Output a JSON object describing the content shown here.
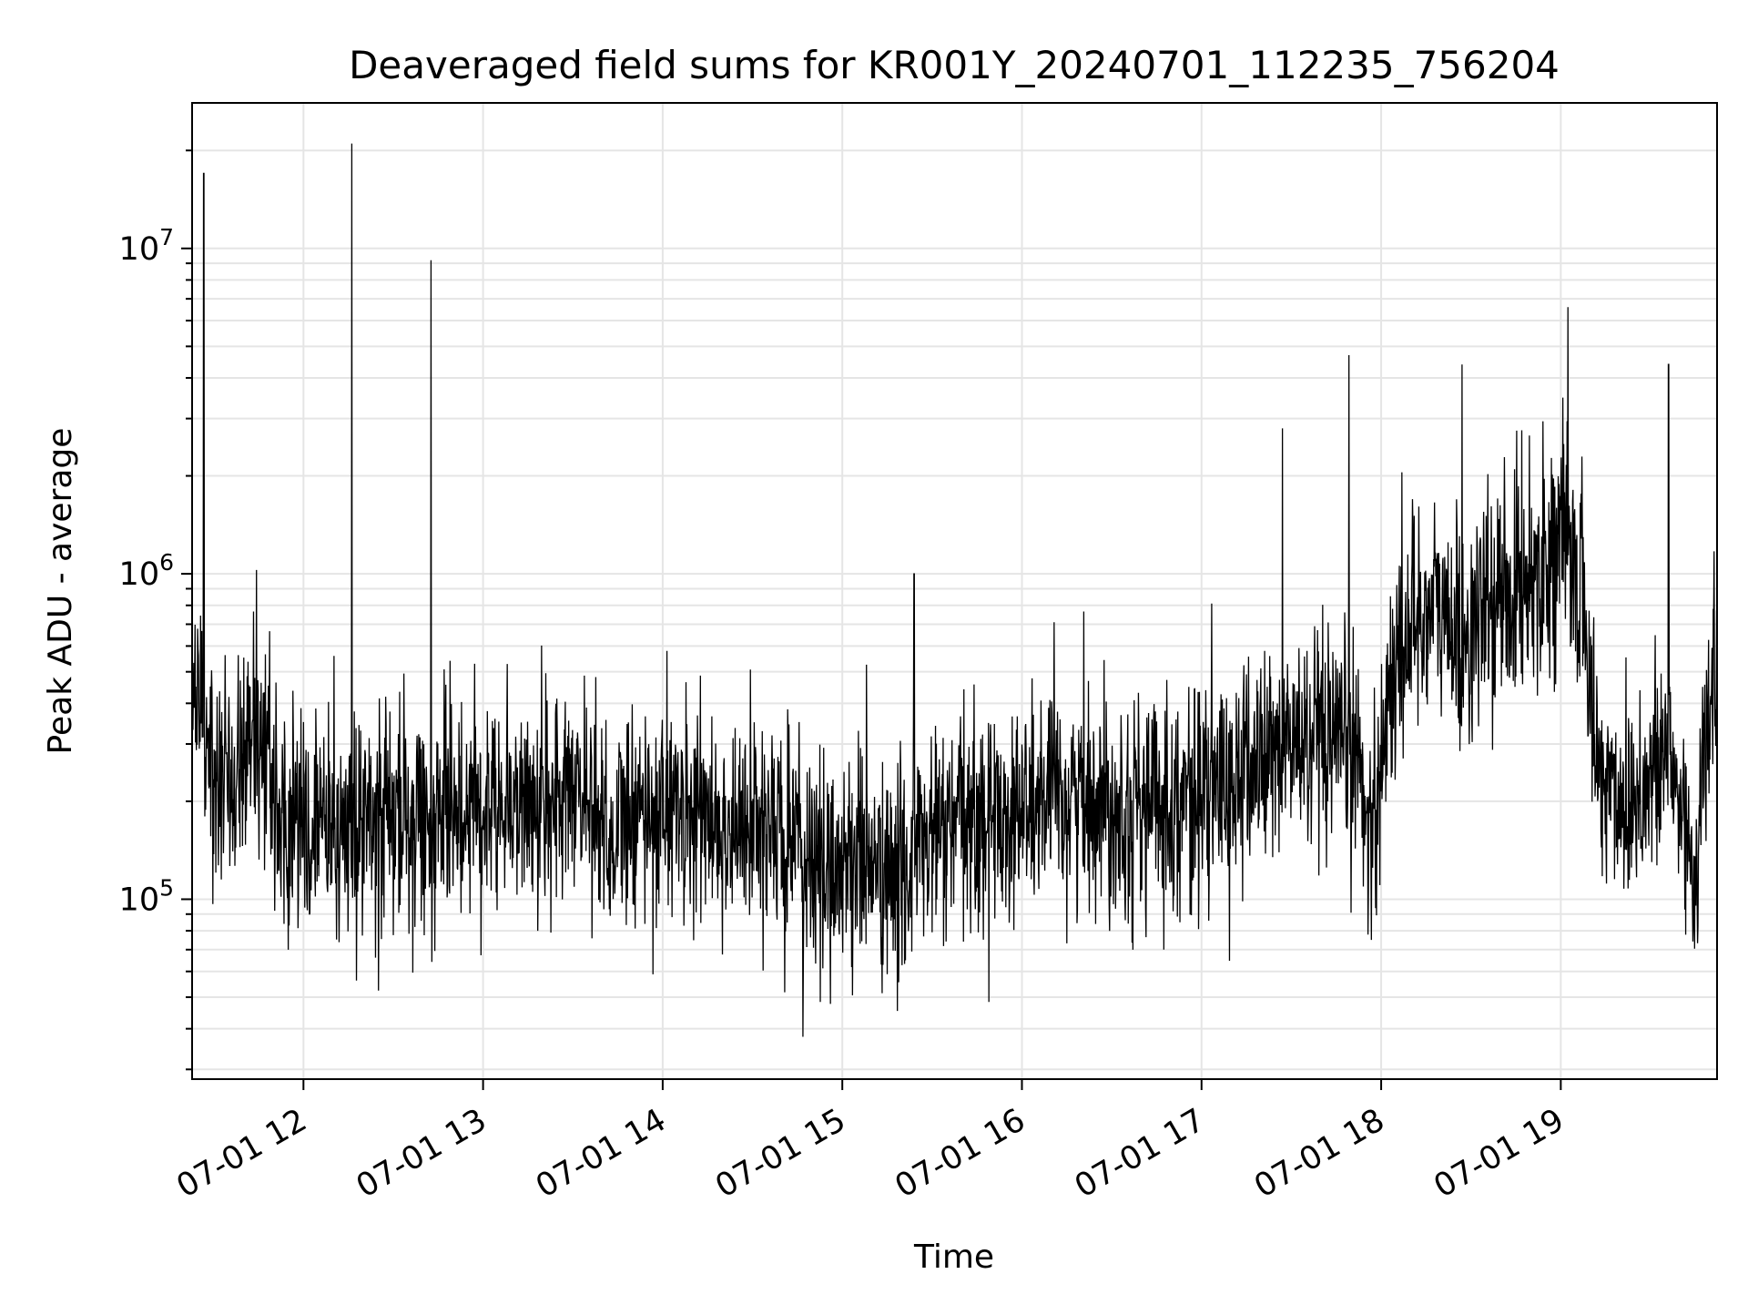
{
  "chart_data": {
    "type": "line",
    "title": "Deaveraged field sums for KR001Y_20240701_112235_756204",
    "xlabel": "Time",
    "ylabel": "Peak ADU - average",
    "x_tick_labels": [
      "07-01 12",
      "07-01 13",
      "07-01 14",
      "07-01 15",
      "07-01 16",
      "07-01 17",
      "07-01 18",
      "07-01 19"
    ],
    "x_tick_hours": [
      12,
      13,
      14,
      15,
      16,
      17,
      18,
      19
    ],
    "xlim_hours": [
      11.38,
      19.87
    ],
    "x_start": "2024-07-01 11:22:35",
    "x_end": "2024-07-01 19:52",
    "y_scale": "log",
    "ylim": [
      28000,
      28000000
    ],
    "y_major_ticks": [
      {
        "value": 100000,
        "base": "10",
        "exp": "5"
      },
      {
        "value": 1000000,
        "base": "10",
        "exp": "6"
      },
      {
        "value": 10000000,
        "base": "10",
        "exp": "7"
      }
    ],
    "grid": true,
    "line_color": "#000000",
    "grid_color": "#e5e5e5",
    "series": [
      {
        "hours": [
          11.38,
          11.45,
          11.55,
          11.65,
          11.75,
          11.85,
          11.95,
          12.1,
          12.25,
          12.4,
          12.55,
          12.7,
          12.85,
          13.0,
          13.2,
          13.4,
          13.55,
          13.7,
          13.85,
          14.0,
          14.2,
          14.4,
          14.55,
          14.7,
          14.8,
          14.9,
          15.0,
          15.1,
          15.2,
          15.3,
          15.4,
          15.55,
          15.7,
          15.85,
          16.0,
          16.2,
          16.4,
          16.6,
          16.8,
          17.0,
          17.15,
          17.3,
          17.45,
          17.55,
          17.65,
          17.75,
          17.85,
          17.95,
          18.05,
          18.15,
          18.3,
          18.45,
          18.6,
          18.75,
          18.9,
          19.0,
          19.05,
          19.12,
          19.2,
          19.35,
          19.5,
          19.6,
          19.68,
          19.75,
          19.82,
          19.87
        ],
        "values": [
          350000,
          330000,
          250000,
          280000,
          360000,
          190000,
          160000,
          170000,
          160000,
          170000,
          180000,
          170000,
          190000,
          210000,
          200000,
          190000,
          230000,
          160000,
          170000,
          200000,
          180000,
          160000,
          170000,
          150000,
          130000,
          120000,
          130000,
          140000,
          120000,
          110000,
          140000,
          160000,
          170000,
          180000,
          190000,
          200000,
          210000,
          190000,
          200000,
          210000,
          220000,
          260000,
          290000,
          310000,
          280000,
          270000,
          300000,
          160000,
          450000,
          700000,
          800000,
          600000,
          800000,
          900000,
          1100000,
          1300000,
          1100000,
          900000,
          250000,
          200000,
          230000,
          280000,
          180000,
          120000,
          350000,
          500000
        ]
      }
    ],
    "spikes": [
      {
        "hour": 11.445,
        "value": 17000000
      },
      {
        "hour": 12.27,
        "value": 21000000
      },
      {
        "hour": 12.71,
        "value": 9200000
      },
      {
        "hour": 15.4,
        "value": 1000000
      },
      {
        "hour": 17.45,
        "value": 2800000
      },
      {
        "hour": 17.82,
        "value": 4700000
      },
      {
        "hour": 18.45,
        "value": 4400000
      },
      {
        "hour": 19.04,
        "value": 6600000
      },
      {
        "hour": 19.6,
        "value": 4400000
      }
    ]
  }
}
